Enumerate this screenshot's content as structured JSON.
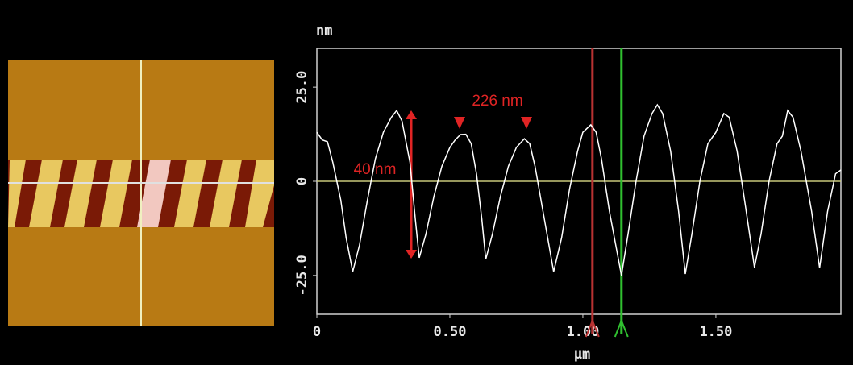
{
  "chart_data": {
    "type": "line",
    "y_label": "nm",
    "x_label": "µm",
    "x": [
      0,
      0.02,
      0.04,
      0.06,
      0.09,
      0.11,
      0.135,
      0.16,
      0.19,
      0.22,
      0.25,
      0.28,
      0.3,
      0.32,
      0.35,
      0.37,
      0.385,
      0.41,
      0.44,
      0.47,
      0.5,
      0.52,
      0.54,
      0.56,
      0.58,
      0.6,
      0.62,
      0.635,
      0.66,
      0.69,
      0.72,
      0.75,
      0.78,
      0.8,
      0.82,
      0.85,
      0.89,
      0.92,
      0.95,
      0.98,
      1.0,
      1.03,
      1.05,
      1.07,
      1.1,
      1.145,
      1.17,
      1.2,
      1.23,
      1.26,
      1.28,
      1.3,
      1.33,
      1.36,
      1.385,
      1.41,
      1.44,
      1.47,
      1.5,
      1.53,
      1.55,
      1.58,
      1.61,
      1.645,
      1.67,
      1.7,
      1.73,
      1.75,
      1.77,
      1.79,
      1.82,
      1.86,
      1.89,
      1.92,
      1.95,
      1.97
    ],
    "values": [
      13,
      11,
      10.5,
      5,
      -5,
      -15,
      -24,
      -17,
      -5,
      6,
      13,
      17,
      18.8,
      16,
      5,
      -10,
      -20.3,
      -14,
      -4,
      4,
      9,
      11,
      12.4,
      12.5,
      10,
      2,
      -10,
      -20.7,
      -14,
      -4,
      4,
      9,
      11.3,
      10,
      4,
      -8,
      -24,
      -15,
      -2,
      8,
      13,
      15,
      13,
      6,
      -8,
      -25,
      -14,
      0,
      12,
      18,
      20.3,
      18,
      8,
      -8,
      -24.6,
      -14,
      0,
      10,
      13,
      18,
      17,
      8,
      -6,
      -22.9,
      -14,
      0,
      10,
      12,
      18.8,
      17,
      8,
      -8,
      -23,
      -8,
      2,
      3
    ],
    "color": "#ffffff",
    "xlim": [
      0,
      1.97
    ],
    "ylim": [
      -35.3,
      35.3
    ],
    "xticks": [
      0,
      {
        "value": 0.5,
        "label": "0.50"
      },
      {
        "value": 1,
        "label": "1.00"
      },
      {
        "value": 1.5,
        "label": "1.50"
      }
    ],
    "yticks": [
      {
        "value": 25,
        "label": "25.0"
      },
      0,
      {
        "value": -25,
        "label": "-25.0"
      }
    ],
    "cursors": [
      {
        "x": 1.036,
        "color": "#b83232"
      },
      {
        "x": 1.145,
        "color": "#30c030"
      }
    ],
    "zero_line_color": "#c8c87a",
    "annotations": [
      "226 nm",
      "40 nm"
    ]
  }
}
